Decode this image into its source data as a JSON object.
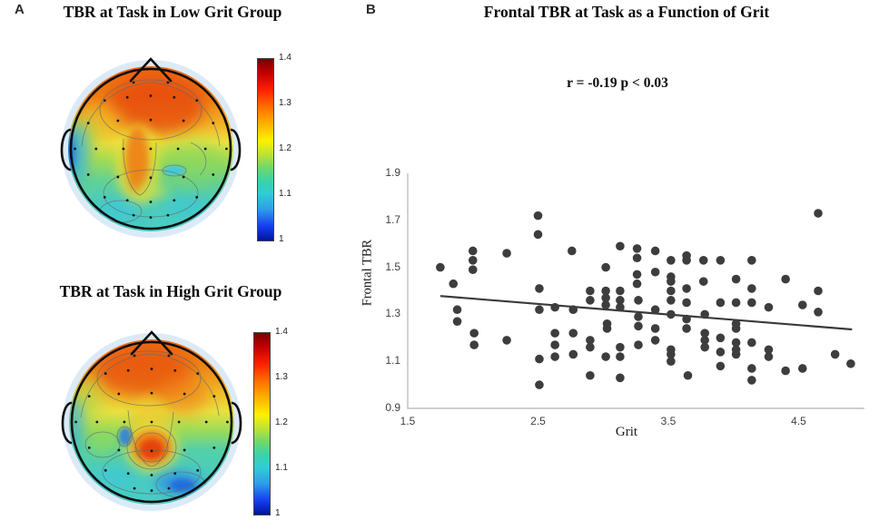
{
  "figure": {
    "panel_a_label": "A",
    "panel_b_label": "B"
  },
  "panel_a": {
    "map1_title": "TBR at Task in Low Grit Group",
    "map2_title": "TBR at Task in High Grit Group",
    "colorbar_ticks": [
      "1.4",
      "1.3",
      "1.2",
      "1.1",
      "1"
    ],
    "colormap": "jet"
  },
  "panel_b": {
    "title": "Frontal TBR at Task as a Function of Grit",
    "annotation": "r = -0.19 p < 0.03",
    "xlabel": "Grit",
    "ylabel": "Frontal TBR"
  },
  "colors": {
    "scatter_point": "#3d3d3d",
    "trend_line": "#3a3a3a",
    "axis": "#bfbfbf",
    "halo": "#dceaf7"
  },
  "chart_data": [
    {
      "type": "heatmap",
      "subtype": "eeg-scalp-topomap",
      "title": "TBR at Task in Low Grit Group",
      "value_label": "TBR",
      "colormap": "jet",
      "colorbar_range": [
        1,
        1.4
      ],
      "colorbar_ticks": [
        1.4,
        1.3,
        1.2,
        1.1,
        1
      ],
      "pattern": "High TBR (~1.3-1.4, orange-red) over frontal sites with a midline tongue extending toward central sites; mid-range TBR (~1.15-1.2, green-cyan) over posterior and temporal regions; small low-TBR blue patch near the left ear"
    },
    {
      "type": "heatmap",
      "subtype": "eeg-scalp-topomap",
      "title": "TBR at Task in High Grit Group",
      "value_label": "TBR",
      "colormap": "jet",
      "colorbar_range": [
        1,
        1.4
      ],
      "colorbar_ticks": [
        1.4,
        1.3,
        1.2,
        1.1,
        1
      ],
      "pattern": "High TBR over frontal sites plus a distinct central midline hotspot (~1.35); green-cyan posterior regions; blue low-TBR patch over right parieto-occipital area and a small blue spot left of center"
    },
    {
      "type": "scatter",
      "title": "Frontal TBR at Task as a Function of Grit",
      "annotation": "r = -0.19 p < 0.03",
      "xlabel": "Grit",
      "ylabel": "Frontal TBR",
      "xlim": [
        1.5,
        5.0
      ],
      "ylim": [
        0.9,
        1.9
      ],
      "xticks": [
        1.5,
        2.5,
        3.5,
        4.5
      ],
      "yticks": [
        0.9,
        1.1,
        1.3,
        1.5,
        1.7,
        1.9
      ],
      "legend": "none",
      "grid": false,
      "trendline": {
        "x1": 1.75,
        "y1": 1.378,
        "x2": 4.91,
        "y2": 1.236
      },
      "points": [
        [
          1.75,
          1.5
        ],
        [
          1.85,
          1.43
        ],
        [
          1.88,
          1.32
        ],
        [
          1.88,
          1.27
        ],
        [
          2.0,
          1.57
        ],
        [
          2.0,
          1.53
        ],
        [
          2.0,
          1.49
        ],
        [
          2.01,
          1.22
        ],
        [
          2.01,
          1.17
        ],
        [
          2.26,
          1.56
        ],
        [
          2.26,
          1.19
        ],
        [
          2.5,
          1.72
        ],
        [
          2.5,
          1.64
        ],
        [
          2.51,
          1.41
        ],
        [
          2.51,
          1.32
        ],
        [
          2.51,
          1.11
        ],
        [
          2.51,
          1.0
        ],
        [
          2.63,
          1.33
        ],
        [
          2.63,
          1.22
        ],
        [
          2.63,
          1.17
        ],
        [
          2.63,
          1.12
        ],
        [
          2.76,
          1.57
        ],
        [
          2.77,
          1.32
        ],
        [
          2.77,
          1.22
        ],
        [
          2.77,
          1.13
        ],
        [
          2.9,
          1.4
        ],
        [
          2.9,
          1.36
        ],
        [
          2.9,
          1.19
        ],
        [
          2.9,
          1.16
        ],
        [
          2.9,
          1.04
        ],
        [
          3.02,
          1.5
        ],
        [
          3.02,
          1.4
        ],
        [
          3.02,
          1.37
        ],
        [
          3.02,
          1.34
        ],
        [
          3.03,
          1.26
        ],
        [
          3.03,
          1.24
        ],
        [
          3.02,
          1.12
        ],
        [
          3.13,
          1.59
        ],
        [
          3.13,
          1.4
        ],
        [
          3.13,
          1.36
        ],
        [
          3.13,
          1.33
        ],
        [
          3.13,
          1.16
        ],
        [
          3.13,
          1.12
        ],
        [
          3.13,
          1.03
        ],
        [
          3.26,
          1.58
        ],
        [
          3.26,
          1.54
        ],
        [
          3.26,
          1.47
        ],
        [
          3.26,
          1.43
        ],
        [
          3.27,
          1.36
        ],
        [
          3.27,
          1.29
        ],
        [
          3.27,
          1.25
        ],
        [
          3.27,
          1.17
        ],
        [
          3.4,
          1.57
        ],
        [
          3.4,
          1.48
        ],
        [
          3.4,
          1.32
        ],
        [
          3.4,
          1.24
        ],
        [
          3.4,
          1.19
        ],
        [
          3.52,
          1.53
        ],
        [
          3.52,
          1.46
        ],
        [
          3.52,
          1.44
        ],
        [
          3.52,
          1.4
        ],
        [
          3.52,
          1.36
        ],
        [
          3.52,
          1.3
        ],
        [
          3.52,
          1.15
        ],
        [
          3.52,
          1.13
        ],
        [
          3.52,
          1.1
        ],
        [
          3.64,
          1.55
        ],
        [
          3.64,
          1.53
        ],
        [
          3.64,
          1.41
        ],
        [
          3.64,
          1.35
        ],
        [
          3.64,
          1.28
        ],
        [
          3.64,
          1.24
        ],
        [
          3.65,
          1.04
        ],
        [
          3.77,
          1.53
        ],
        [
          3.77,
          1.44
        ],
        [
          3.78,
          1.3
        ],
        [
          3.78,
          1.22
        ],
        [
          3.78,
          1.19
        ],
        [
          3.78,
          1.16
        ],
        [
          3.9,
          1.53
        ],
        [
          3.9,
          1.35
        ],
        [
          3.9,
          1.2
        ],
        [
          3.9,
          1.14
        ],
        [
          3.9,
          1.08
        ],
        [
          4.02,
          1.45
        ],
        [
          4.02,
          1.35
        ],
        [
          4.02,
          1.26
        ],
        [
          4.02,
          1.24
        ],
        [
          4.02,
          1.18
        ],
        [
          4.02,
          1.15
        ],
        [
          4.02,
          1.13
        ],
        [
          4.14,
          1.53
        ],
        [
          4.14,
          1.41
        ],
        [
          4.14,
          1.35
        ],
        [
          4.14,
          1.18
        ],
        [
          4.14,
          1.07
        ],
        [
          4.14,
          1.02
        ],
        [
          4.27,
          1.33
        ],
        [
          4.27,
          1.15
        ],
        [
          4.27,
          1.12
        ],
        [
          4.4,
          1.45
        ],
        [
          4.4,
          1.06
        ],
        [
          4.53,
          1.34
        ],
        [
          4.53,
          1.07
        ],
        [
          4.65,
          1.73
        ],
        [
          4.65,
          1.4
        ],
        [
          4.65,
          1.31
        ],
        [
          4.78,
          1.13
        ],
        [
          4.9,
          1.09
        ]
      ]
    }
  ]
}
